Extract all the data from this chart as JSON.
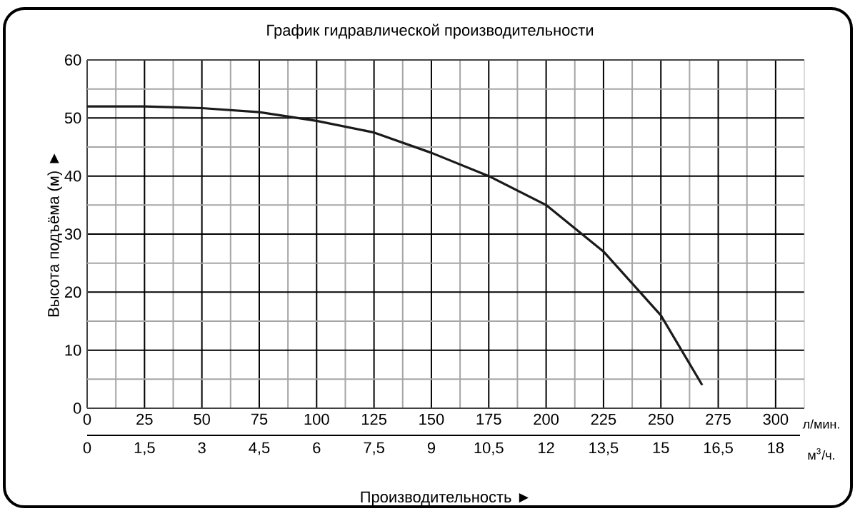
{
  "chart_data": {
    "type": "line",
    "title": "График гидравлической производительности",
    "xlabel": "Производительность ►",
    "ylabel": "Высота подъёма (м) ►",
    "x": [
      0,
      25,
      50,
      75,
      100,
      125,
      150,
      175,
      200,
      225,
      250,
      268
    ],
    "series": [
      {
        "color": "#1a1a1a",
        "values": [
          52,
          52,
          51.7,
          51,
          49.5,
          47.5,
          44,
          40,
          35,
          27,
          16,
          4
        ]
      }
    ],
    "xlim": [
      0,
      312.5
    ],
    "xticks": [
      0,
      25,
      50,
      75,
      100,
      125,
      150,
      175,
      200,
      225,
      250,
      275,
      300
    ],
    "x2lim": [
      0,
      18.75
    ],
    "x2ticks": [
      0,
      {
        "value": 1.5,
        "label": "1,5"
      },
      3,
      {
        "value": 4.5,
        "label": "4,5"
      },
      6,
      {
        "value": 7.5,
        "label": "7,5"
      },
      9,
      {
        "value": 10.5,
        "label": "10,5"
      },
      12,
      {
        "value": 13.5,
        "label": "13,5"
      },
      15,
      {
        "value": 16.5,
        "label": "16,5"
      },
      18
    ],
    "ylim": [
      0,
      60
    ],
    "yticks": [
      0,
      10,
      20,
      30,
      40,
      50,
      60
    ],
    "grid": true,
    "marker": "none",
    "line_style": "solid",
    "annotations": [
      "л/мин.",
      "м$^{3}$/ч."
    ]
  }
}
